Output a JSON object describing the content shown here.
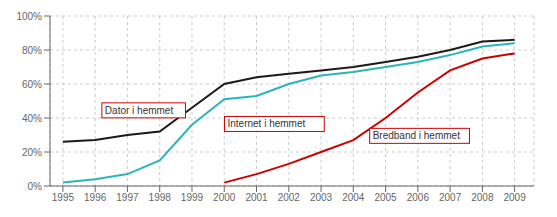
{
  "chart_data": {
    "type": "line",
    "x": [
      1995,
      1996,
      1997,
      1998,
      1999,
      2000,
      2001,
      2002,
      2003,
      2004,
      2005,
      2006,
      2007,
      2008,
      2009
    ],
    "series": [
      {
        "color": "#1a1a1a",
        "values": [
          0.26,
          0.27,
          0.3,
          0.32,
          0.46,
          0.6,
          0.64,
          0.66,
          0.68,
          0.7,
          0.73,
          0.76,
          0.8,
          0.85,
          0.86
        ]
      },
      {
        "color": "#2ab5bb",
        "values": [
          0.02,
          0.04,
          0.07,
          0.15,
          0.36,
          0.51,
          0.53,
          0.6,
          0.65,
          0.67,
          0.7,
          0.73,
          0.77,
          0.82,
          0.84
        ]
      },
      {
        "color": "#cc0000",
        "values": [
          null,
          null,
          null,
          null,
          null,
          0.02,
          0.07,
          0.13,
          0.2,
          0.27,
          0.4,
          0.55,
          0.68,
          0.75,
          0.78
        ]
      }
    ],
    "xlim": [
      1994.6,
      2009.6
    ],
    "xticks": [
      1995,
      1996,
      1997,
      1998,
      1999,
      2000,
      2001,
      2002,
      2003,
      2004,
      2005,
      2006,
      2007,
      2008,
      2009
    ],
    "ylim": [
      0,
      1.0
    ],
    "yticks": [
      {
        "value": 0,
        "label": "0%"
      },
      {
        "value": 0.2,
        "label": "20%"
      },
      {
        "value": 0.4,
        "label": "40%"
      },
      {
        "value": 0.6,
        "label": "60%"
      },
      {
        "value": 0.8,
        "label": "80%"
      },
      {
        "value": 1.0,
        "label": "100%"
      }
    ],
    "grid": true,
    "annotations": [
      {
        "text": "Dator i hemmet",
        "x": 1996.3,
        "y": 0.445,
        "color": "#cc0000"
      },
      {
        "text": "Internet i hemmet",
        "x": 2000.1,
        "y": 0.365,
        "color": "#cc0000"
      },
      {
        "text": "Bredband i hemmet",
        "x": 2004.6,
        "y": 0.295,
        "color": "#cc0000"
      }
    ]
  }
}
